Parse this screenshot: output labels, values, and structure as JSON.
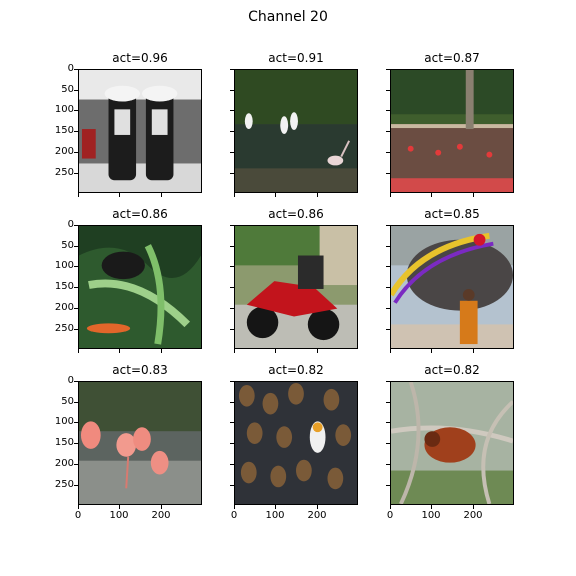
{
  "figure": {
    "title": "Channel 20"
  },
  "axes": {
    "yticks": [
      "0",
      "50",
      "100",
      "150",
      "200",
      "250"
    ],
    "xticks": [
      "0",
      "100",
      "200"
    ]
  },
  "panels": [
    {
      "title": "act=0.96",
      "subject": "shoes-in-snow"
    },
    {
      "title": "act=0.91",
      "subject": "egrets-in-pond"
    },
    {
      "title": "act=0.87",
      "subject": "garden-fence"
    },
    {
      "title": "act=0.86",
      "subject": "leaves-and-animal"
    },
    {
      "title": "act=0.86",
      "subject": "red-motorcycle"
    },
    {
      "title": "act=0.85",
      "subject": "decorated-elephant"
    },
    {
      "title": "act=0.83",
      "subject": "flamingos"
    },
    {
      "title": "act=0.82",
      "subject": "penguin-colony"
    },
    {
      "title": "act=0.82",
      "subject": "orangutan-in-tree"
    }
  ]
}
